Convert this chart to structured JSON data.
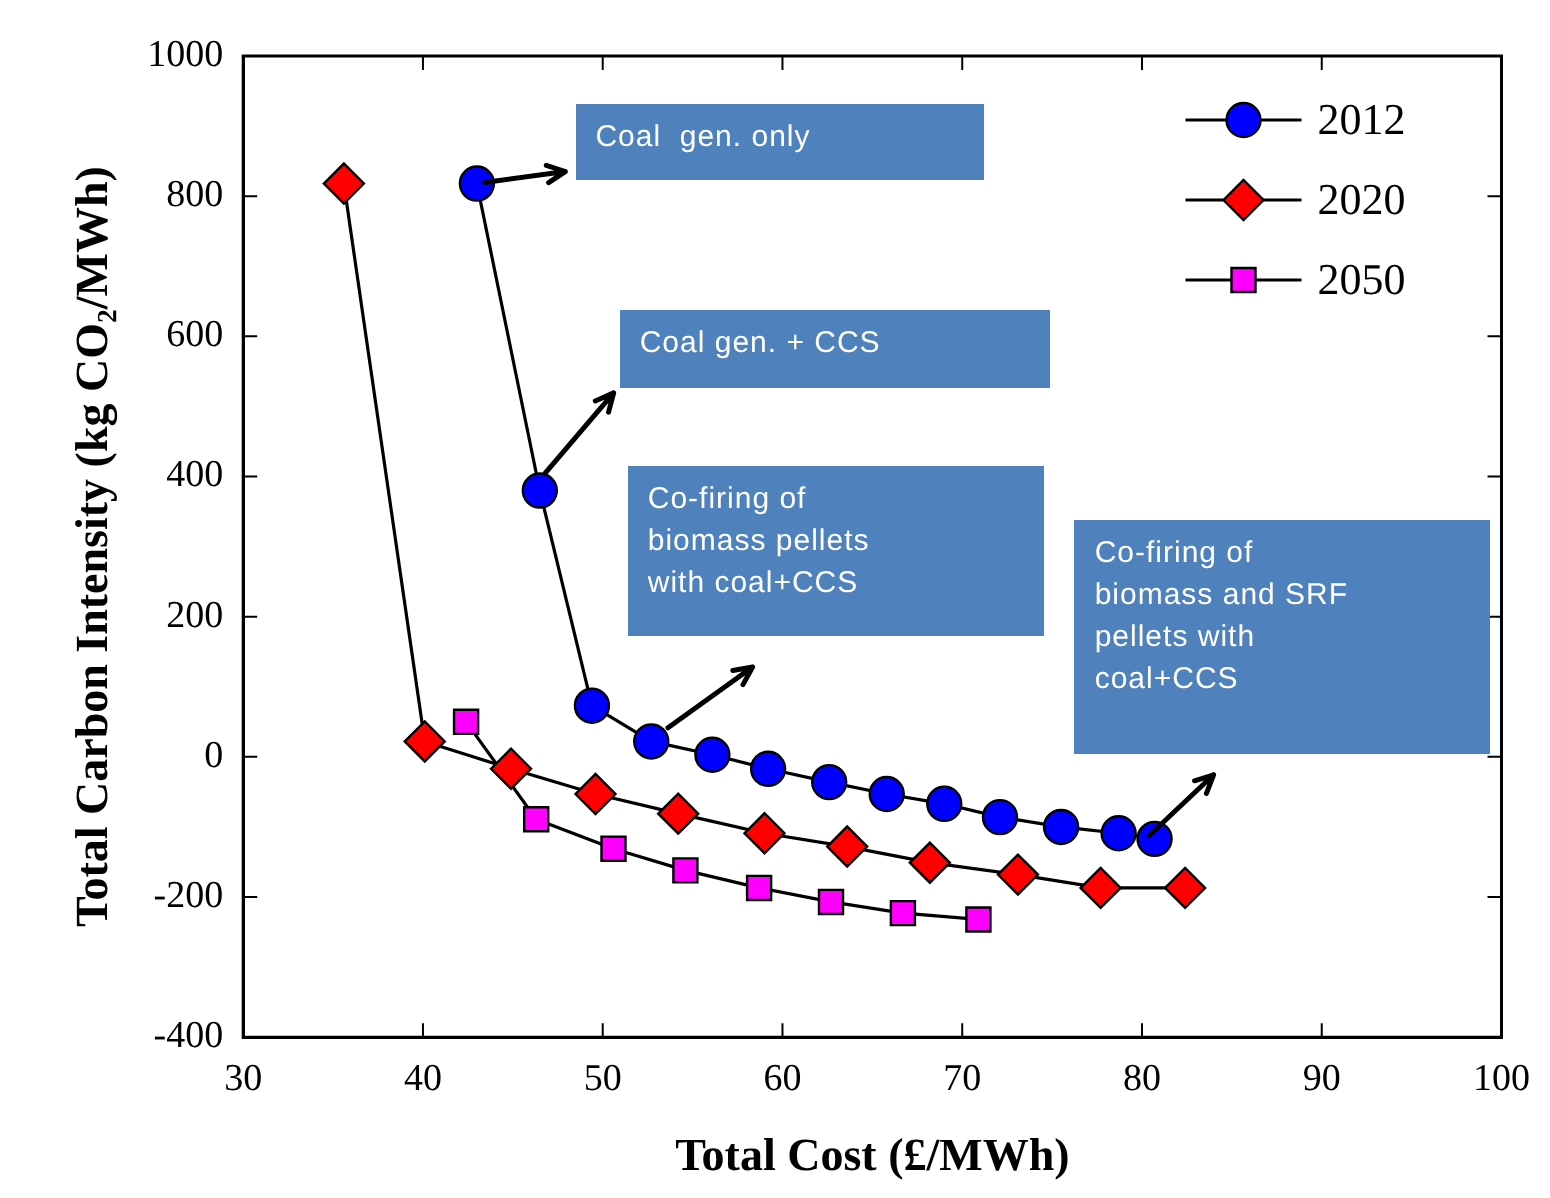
{
  "chart_data": {
    "type": "line",
    "xlabel": "Total Cost (£/MWh)",
    "ylabel": "Total Carbon Intensity (kg CO₂/MWh)",
    "xlim": [
      30,
      100
    ],
    "xticks": [
      30,
      40,
      50,
      60,
      70,
      80,
      90,
      100
    ],
    "ylim": [
      -400,
      1000
    ],
    "yticks": [
      -400,
      -200,
      0,
      200,
      400,
      600,
      800,
      1000
    ],
    "grid": false,
    "legend": "top right",
    "line_style": "solid",
    "series": [
      {
        "name": "2012",
        "color": "#0000ff",
        "marker": "circle",
        "x": [
          43,
          46.5,
          49.4,
          52.7,
          56.1,
          59.2,
          62.6,
          65.8,
          69,
          72.1,
          75.5,
          78.7,
          80.7
        ],
        "values": [
          818,
          380,
          73,
          22,
          3,
          -17,
          -36,
          -53,
          -67,
          -86,
          -100,
          -109,
          -117
        ]
      },
      {
        "name": "2020",
        "color": "#ff0000",
        "marker": "diamond",
        "x": [
          35.6,
          40.1,
          44.9,
          49.6,
          54.2,
          59,
          63.6,
          68.2,
          73.1,
          77.7,
          82.4
        ],
        "values": [
          818,
          22,
          -17,
          -53,
          -81,
          -109,
          -128,
          -151,
          -168,
          -187,
          -187
        ]
      },
      {
        "name": "2050",
        "color": "#ff00ff",
        "marker": "square",
        "x": [
          42.4,
          46.3,
          50.6,
          54.6,
          58.7,
          62.7,
          66.7,
          70.9
        ],
        "values": [
          50,
          -89,
          -131,
          -162,
          -187,
          -207,
          -223,
          -232
        ]
      }
    ],
    "annotations": [
      {
        "text": "Coal  gen. only",
        "x": 43,
        "y": 818
      },
      "Coal gen. + CCS",
      "Co-firing of\nbiomass pellets\nwith coal+CCS",
      "Co-firing of\nbiomass and SRF\npellets with\ncoal+CCS"
    ]
  }
}
